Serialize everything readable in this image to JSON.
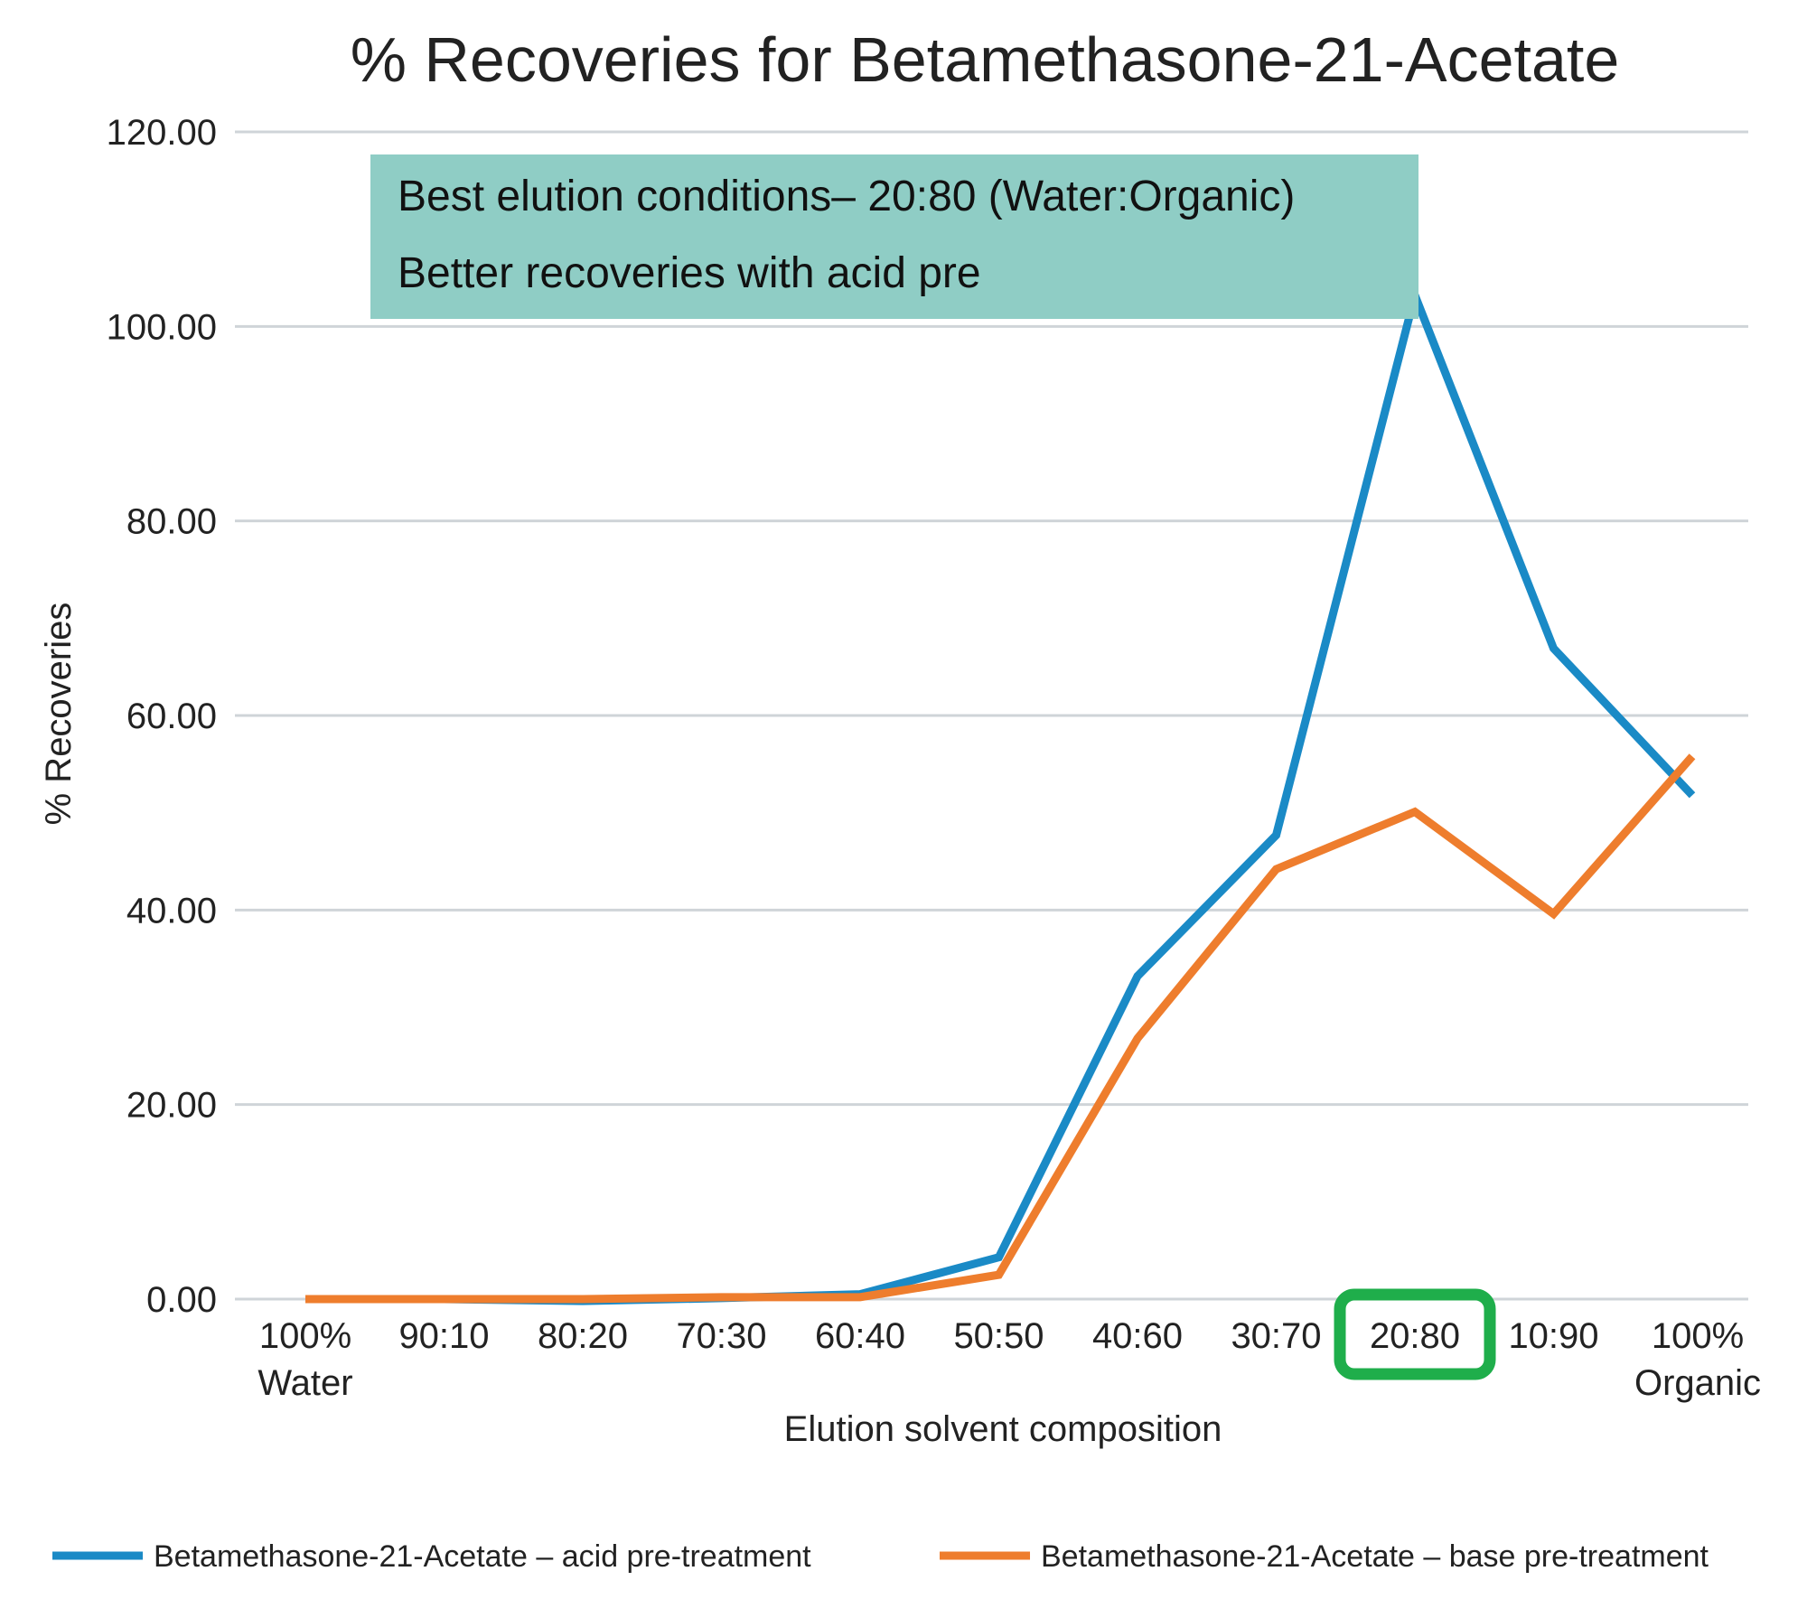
{
  "chart_data": {
    "type": "line",
    "title": "% Recoveries for Betamethasone-21-Acetate",
    "xlabel": "Elution solvent composition",
    "ylabel": "% Recoveries",
    "categories": [
      [
        "100%",
        "Water"
      ],
      [
        "90:10"
      ],
      [
        "80:20"
      ],
      [
        "70:30"
      ],
      [
        "60:40"
      ],
      [
        "50:50"
      ],
      [
        "40:60"
      ],
      [
        "30:70"
      ],
      [
        "20:80"
      ],
      [
        "10:90"
      ],
      [
        "100%",
        "Organic"
      ]
    ],
    "yticks": [
      "0.00",
      "20.00",
      "40.00",
      "60.00",
      "80.00",
      "100.00",
      "120.00"
    ],
    "ylim": [
      0,
      120
    ],
    "grid": true,
    "legend_position": "bottom",
    "series": [
      {
        "name": "Betamethasone-21-Acetate – acid pre-treatment",
        "color": "#1a8ac6",
        "values": [
          0.0,
          0.0,
          -0.2,
          0.1,
          0.5,
          4.3,
          33.2,
          47.7,
          103.2,
          66.9,
          51.8
        ]
      },
      {
        "name": "Betamethasone-21-Acetate – base pre-treatment",
        "color": "#ee7d2d",
        "values": [
          0.0,
          0.0,
          0.0,
          0.2,
          0.2,
          2.5,
          26.8,
          44.2,
          50.1,
          39.6,
          55.8
        ]
      }
    ],
    "annotation": {
      "lines": [
        "Best elution conditions– 20:80 (Water:Organic)",
        "Better recoveries with acid pre"
      ],
      "background": "#8fcdc5"
    },
    "highlight": {
      "category": "20:80",
      "color": "#1fae4b"
    }
  },
  "colors": {
    "grid": "#cfd4d8",
    "text": "#222222"
  }
}
